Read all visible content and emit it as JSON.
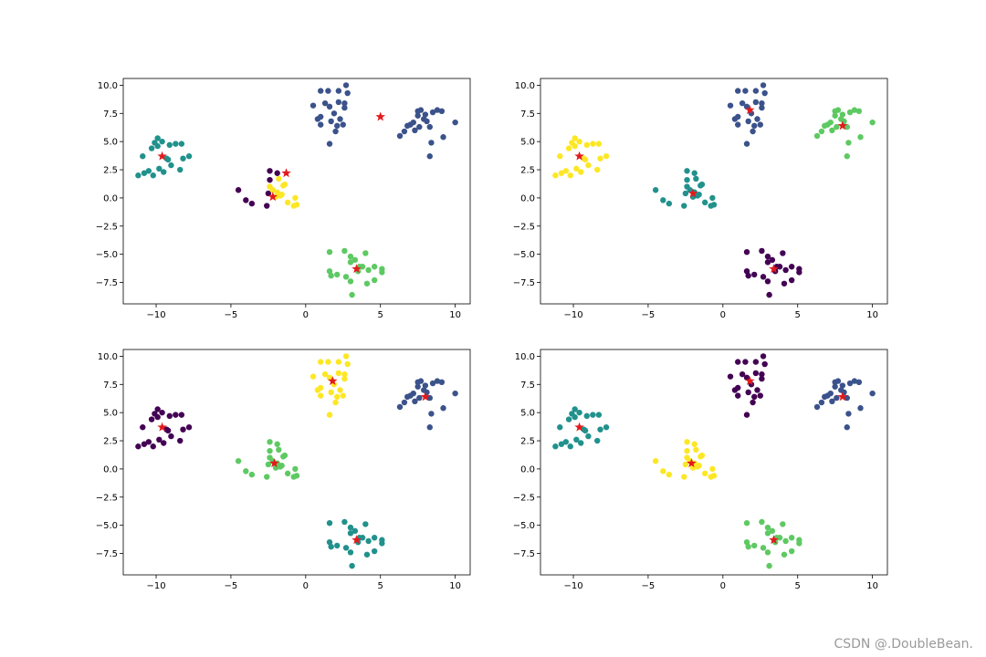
{
  "watermark": "CSDN @.DoubleBean.",
  "colors": {
    "viridis": [
      "#440154",
      "#3b528b",
      "#21918c",
      "#5ec962",
      "#fde725"
    ],
    "centroid": "#e31a1c",
    "axis": "#000000"
  },
  "blobs": [
    {
      "name": "upper-left",
      "points": [
        [
          -11.2,
          2.0
        ],
        [
          -10.8,
          2.2
        ],
        [
          -10.5,
          2.4
        ],
        [
          -10.2,
          2.0
        ],
        [
          -9.8,
          2.6
        ],
        [
          -9.5,
          2.3
        ],
        [
          -9.0,
          2.9
        ],
        [
          -8.4,
          2.5
        ],
        [
          -8.2,
          3.5
        ],
        [
          -7.8,
          3.7
        ],
        [
          -9.2,
          3.4
        ],
        [
          -9.9,
          4.6
        ],
        [
          -10.1,
          4.9
        ],
        [
          -9.9,
          5.3
        ],
        [
          -9.6,
          5.0
        ],
        [
          -9.1,
          4.7
        ],
        [
          -8.7,
          4.8
        ],
        [
          -8.3,
          4.8
        ],
        [
          -10.9,
          3.7
        ],
        [
          -9.3,
          3.5
        ],
        [
          -10.3,
          4.4
        ]
      ]
    },
    {
      "name": "center",
      "points": [
        [
          -4.5,
          0.7
        ],
        [
          -4.0,
          -0.2
        ],
        [
          -3.6,
          -0.5
        ],
        [
          -2.6,
          -0.7
        ],
        [
          -2.5,
          0.4
        ],
        [
          -2.4,
          1.0
        ],
        [
          -2.2,
          0.7
        ],
        [
          -2.0,
          0.1
        ],
        [
          -1.9,
          0.5
        ],
        [
          -1.7,
          0.2
        ],
        [
          -1.6,
          0.3
        ],
        [
          -1.5,
          1.1
        ],
        [
          -1.4,
          1.2
        ],
        [
          -1.8,
          1.7
        ],
        [
          -2.4,
          2.4
        ],
        [
          -1.9,
          2.2
        ],
        [
          -1.2,
          -0.4
        ],
        [
          -0.8,
          -0.7
        ],
        [
          -0.7,
          0.0
        ],
        [
          -0.6,
          -0.6
        ],
        [
          -2.4,
          1.6
        ]
      ]
    },
    {
      "name": "top-center",
      "points": [
        [
          0.5,
          8.2
        ],
        [
          0.8,
          7.0
        ],
        [
          1.0,
          6.5
        ],
        [
          1.0,
          7.2
        ],
        [
          1.3,
          8.4
        ],
        [
          1.0,
          9.5
        ],
        [
          1.5,
          9.5
        ],
        [
          1.6,
          8.1
        ],
        [
          2.2,
          9.5
        ],
        [
          2.2,
          8.5
        ],
        [
          2.3,
          7.0
        ],
        [
          2.5,
          6.5
        ],
        [
          2.6,
          8.0
        ],
        [
          2.6,
          8.4
        ],
        [
          2.7,
          10.0
        ],
        [
          2.8,
          9.3
        ],
        [
          2.1,
          6.4
        ],
        [
          1.9,
          7.5
        ],
        [
          1.6,
          4.8
        ],
        [
          2.0,
          5.9
        ],
        [
          1.7,
          6.8
        ]
      ]
    },
    {
      "name": "right",
      "points": [
        [
          6.3,
          5.5
        ],
        [
          6.6,
          5.9
        ],
        [
          6.8,
          6.4
        ],
        [
          7.0,
          6.5
        ],
        [
          7.2,
          6.7
        ],
        [
          7.5,
          7.3
        ],
        [
          7.5,
          7.7
        ],
        [
          7.7,
          7.8
        ],
        [
          7.9,
          7.0
        ],
        [
          8.1,
          6.8
        ],
        [
          8.3,
          6.3
        ],
        [
          8.5,
          7.6
        ],
        [
          8.8,
          7.8
        ],
        [
          9.1,
          7.7
        ],
        [
          9.2,
          5.4
        ],
        [
          10.0,
          6.7
        ],
        [
          8.4,
          4.9
        ],
        [
          8.3,
          3.7
        ],
        [
          7.3,
          6.0
        ],
        [
          8.0,
          7.4
        ],
        [
          7.6,
          6.3
        ]
      ]
    },
    {
      "name": "bottom",
      "points": [
        [
          1.6,
          -4.8
        ],
        [
          1.6,
          -6.5
        ],
        [
          1.7,
          -6.9
        ],
        [
          2.1,
          -6.8
        ],
        [
          2.6,
          -4.7
        ],
        [
          2.7,
          -7.0
        ],
        [
          3.0,
          -5.2
        ],
        [
          3.0,
          -5.7
        ],
        [
          3.3,
          -5.5
        ],
        [
          3.0,
          -7.4
        ],
        [
          3.1,
          -8.6
        ],
        [
          3.5,
          -6.5
        ],
        [
          3.6,
          -6.1
        ],
        [
          3.8,
          -6.1
        ],
        [
          4.0,
          -4.9
        ],
        [
          4.1,
          -7.6
        ],
        [
          4.2,
          -6.4
        ],
        [
          4.6,
          -6.1
        ],
        [
          4.6,
          -7.3
        ],
        [
          5.1,
          -6.3
        ],
        [
          5.1,
          -6.6
        ]
      ]
    }
  ],
  "chart_data": [
    {
      "type": "scatter",
      "title": "",
      "xlabel": "",
      "ylabel": "",
      "xlim": [
        -12.2,
        11.0
      ],
      "ylim": [
        -9.4,
        10.6
      ],
      "xticks": [
        -10,
        -5,
        0,
        5,
        10
      ],
      "yticks": [
        -7.5,
        -5.0,
        -2.5,
        0.0,
        2.5,
        5.0,
        7.5,
        10.0
      ],
      "grid": false,
      "blob_colors": [
        2,
        4,
        1,
        1,
        3
      ],
      "center_override": {
        "blob": 1,
        "colors": [
          0,
          0,
          0,
          0,
          0,
          4,
          4,
          4,
          4,
          4,
          4,
          4,
          4,
          4,
          0,
          0,
          4,
          4,
          4,
          4,
          0
        ]
      },
      "centroids": [
        [
          -9.6,
          3.7
        ],
        [
          -2.2,
          0.1
        ],
        [
          -1.3,
          2.2
        ],
        [
          3.4,
          -6.3
        ],
        [
          5.0,
          7.2
        ]
      ]
    },
    {
      "type": "scatter",
      "title": "",
      "xlabel": "",
      "ylabel": "",
      "xlim": [
        -12.2,
        11.0
      ],
      "ylim": [
        -9.4,
        10.6
      ],
      "xticks": [
        -10,
        -5,
        0,
        5,
        10
      ],
      "yticks": [
        -7.5,
        -5.0,
        -2.5,
        0.0,
        2.5,
        5.0,
        7.5,
        10.0
      ],
      "grid": false,
      "blob_colors": [
        4,
        2,
        1,
        3,
        0
      ],
      "centroids": [
        [
          -9.6,
          3.7
        ],
        [
          -2.0,
          0.4
        ],
        [
          1.8,
          7.8
        ],
        [
          8.0,
          6.4
        ],
        [
          3.4,
          -6.3
        ]
      ]
    },
    {
      "type": "scatter",
      "title": "",
      "xlabel": "",
      "ylabel": "",
      "xlim": [
        -12.2,
        11.0
      ],
      "ylim": [
        -9.4,
        10.6
      ],
      "xticks": [
        -10,
        -5,
        0,
        5,
        10
      ],
      "yticks": [
        -7.5,
        -5.0,
        -2.5,
        0.0,
        2.5,
        5.0,
        7.5,
        10.0
      ],
      "grid": false,
      "blob_colors": [
        0,
        3,
        4,
        1,
        2
      ],
      "centroids": [
        [
          -9.6,
          3.7
        ],
        [
          -2.1,
          0.5
        ],
        [
          1.8,
          7.8
        ],
        [
          8.0,
          6.4
        ],
        [
          3.4,
          -6.3
        ]
      ]
    },
    {
      "type": "scatter",
      "title": "",
      "xlabel": "",
      "ylabel": "",
      "xlim": [
        -12.2,
        11.0
      ],
      "ylim": [
        -9.4,
        10.6
      ],
      "xticks": [
        -10,
        -5,
        0,
        5,
        10
      ],
      "yticks": [
        -7.5,
        -5.0,
        -2.5,
        0.0,
        2.5,
        5.0,
        7.5,
        10.0
      ],
      "grid": false,
      "blob_colors": [
        2,
        4,
        0,
        1,
        3
      ],
      "centroids": [
        [
          -9.6,
          3.7
        ],
        [
          -2.1,
          0.5
        ],
        [
          1.8,
          7.8
        ],
        [
          8.0,
          6.4
        ],
        [
          3.4,
          -6.3
        ]
      ]
    }
  ]
}
